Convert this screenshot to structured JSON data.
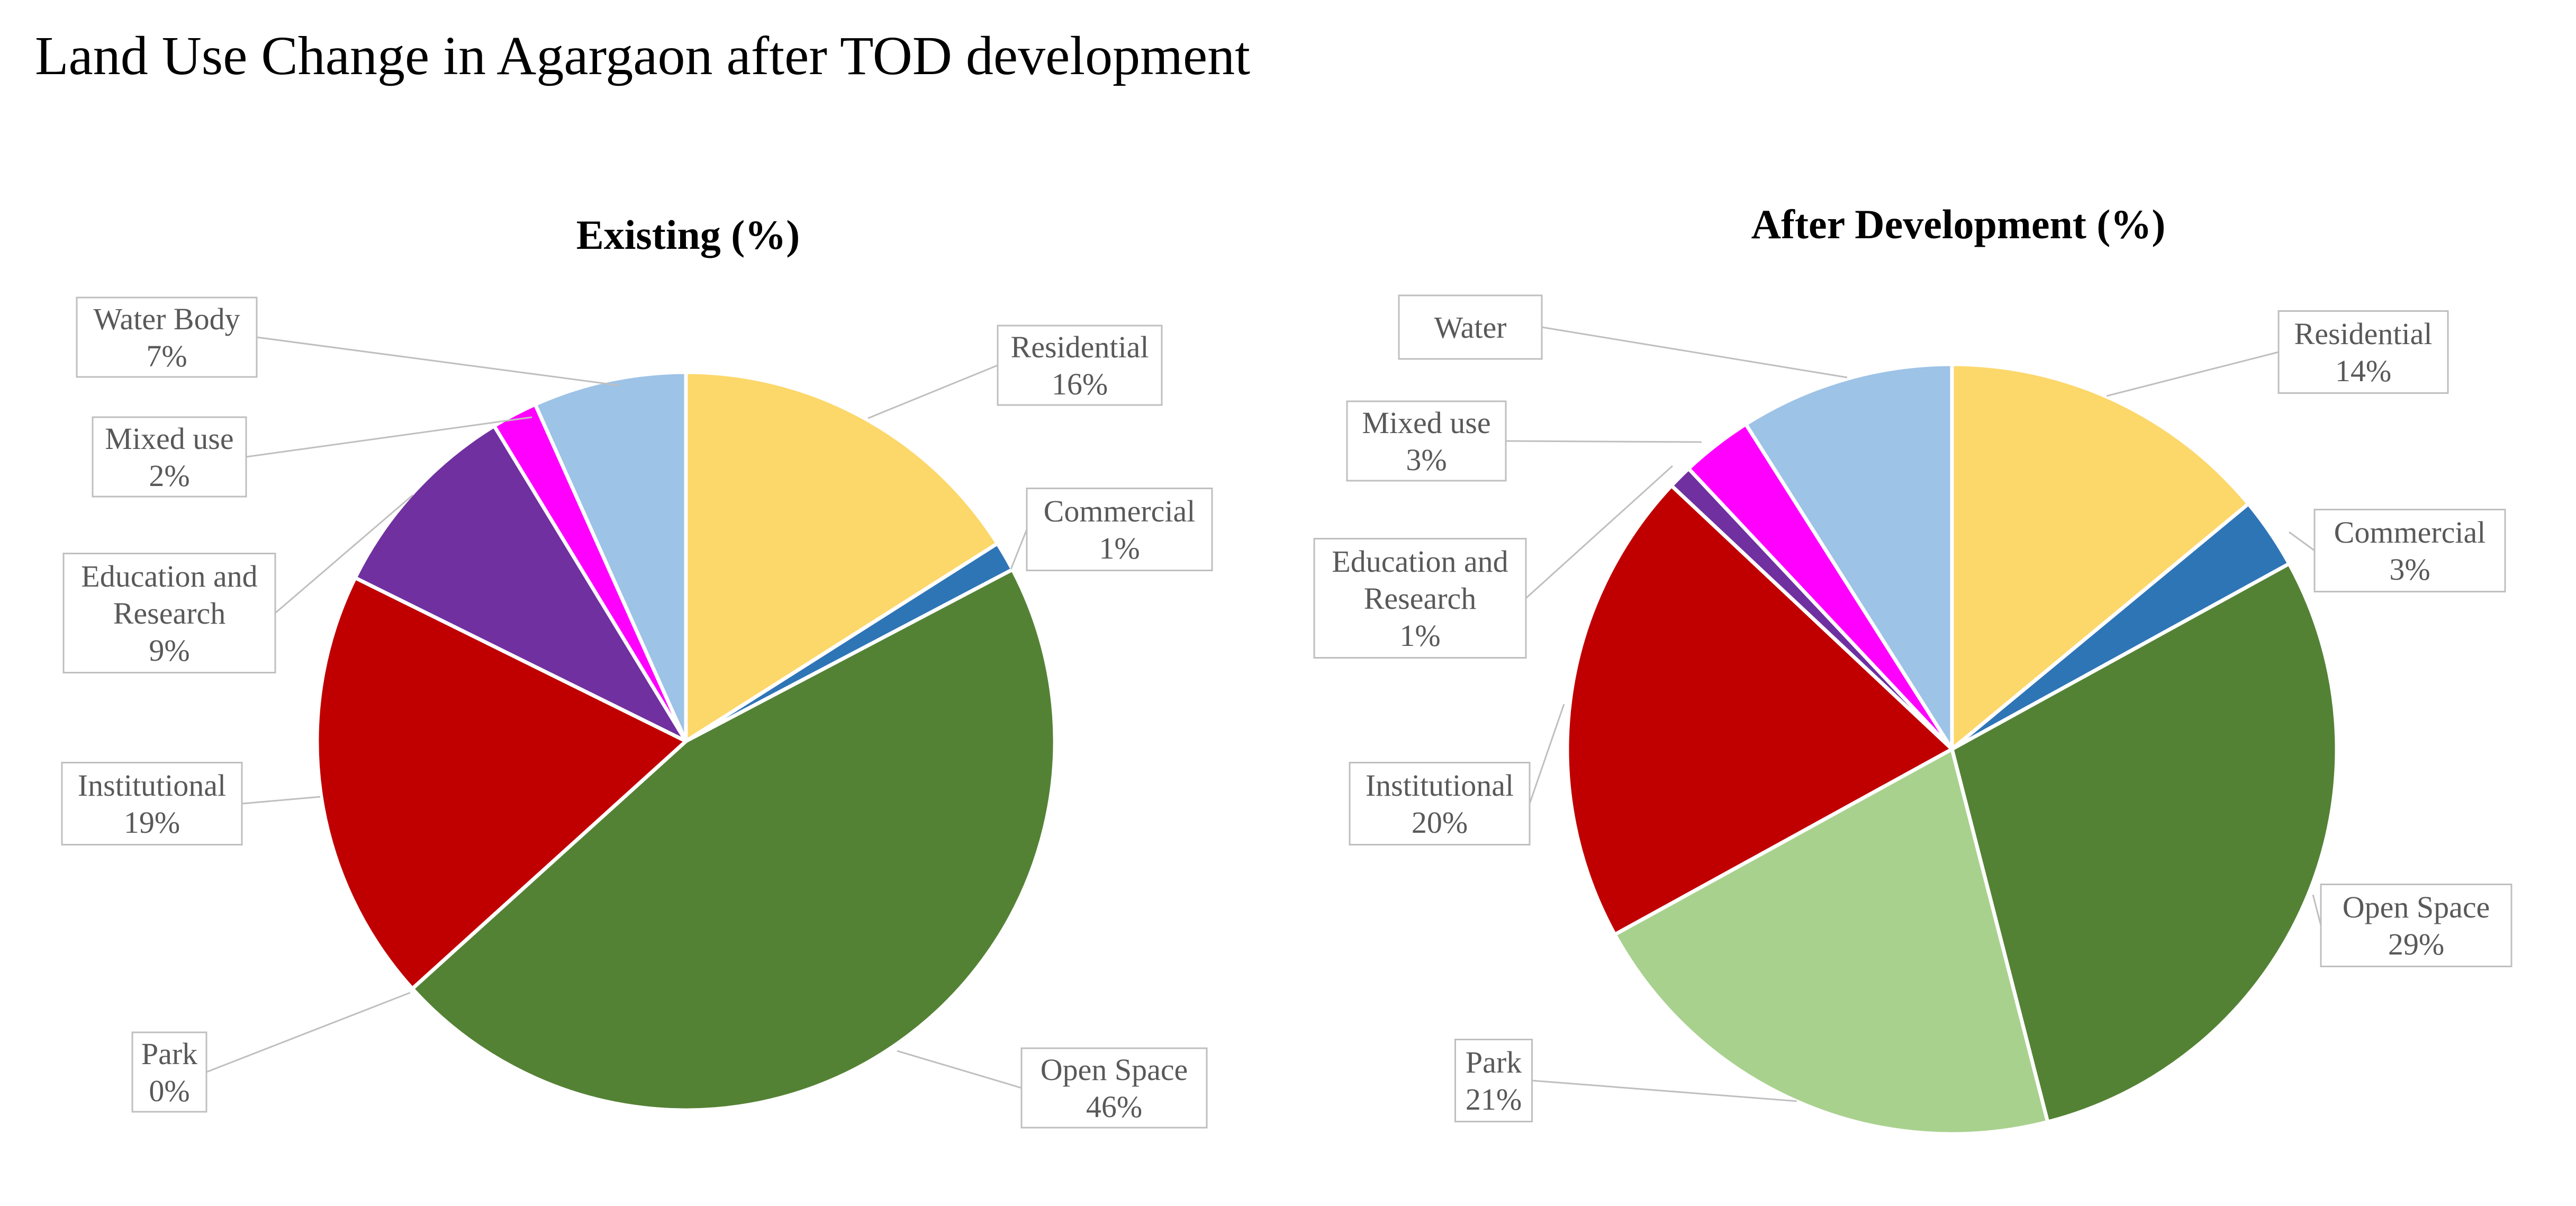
{
  "title": "Land Use Change in Agargaon after TOD development",
  "chart_data": [
    {
      "type": "pie",
      "title": "Existing (%)",
      "slices": [
        {
          "label": "Residential",
          "value": 16,
          "value_text": "16%",
          "color": "#FCD76A"
        },
        {
          "label": "Commercial",
          "value": 1.3,
          "value_text": "1%",
          "color": "#2E75B6"
        },
        {
          "label": "Open Space",
          "value": 46,
          "value_text": "46%",
          "color": "#548235"
        },
        {
          "label": "Park",
          "value": 0,
          "value_text": "0%",
          "color": "#A9D18E"
        },
        {
          "label": "Institutional",
          "value": 19,
          "value_text": "19%",
          "color": "#C00000"
        },
        {
          "label": "Education and Research",
          "value": 9,
          "value_text": "9%",
          "color": "#7030A0"
        },
        {
          "label": "Mixed use",
          "value": 2,
          "value_text": "2%",
          "color": "#FF00FF"
        },
        {
          "label": "Water Body",
          "value": 6.7,
          "value_text": "7%",
          "color": "#9DC3E6"
        }
      ]
    },
    {
      "type": "pie",
      "title": "After Development (%)",
      "slices": [
        {
          "label": "Residential",
          "value": 14,
          "value_text": "14%",
          "color": "#FCD76A"
        },
        {
          "label": "Commercial",
          "value": 3,
          "value_text": "3%",
          "color": "#2E75B6"
        },
        {
          "label": "Open Space",
          "value": 29,
          "value_text": "29%",
          "color": "#548235"
        },
        {
          "label": "Park",
          "value": 21,
          "value_text": "21%",
          "color": "#A9D18E"
        },
        {
          "label": "Institutional",
          "value": 20,
          "value_text": "20%",
          "color": "#C00000"
        },
        {
          "label": "Education and Research",
          "value": 1,
          "value_text": "1%",
          "color": "#7030A0"
        },
        {
          "label": "Mixed use",
          "value": 3,
          "value_text": "3%",
          "color": "#FF00FF"
        },
        {
          "label": "Water",
          "value": 9,
          "value_text": "",
          "color": "#9DC3E6"
        }
      ]
    }
  ]
}
